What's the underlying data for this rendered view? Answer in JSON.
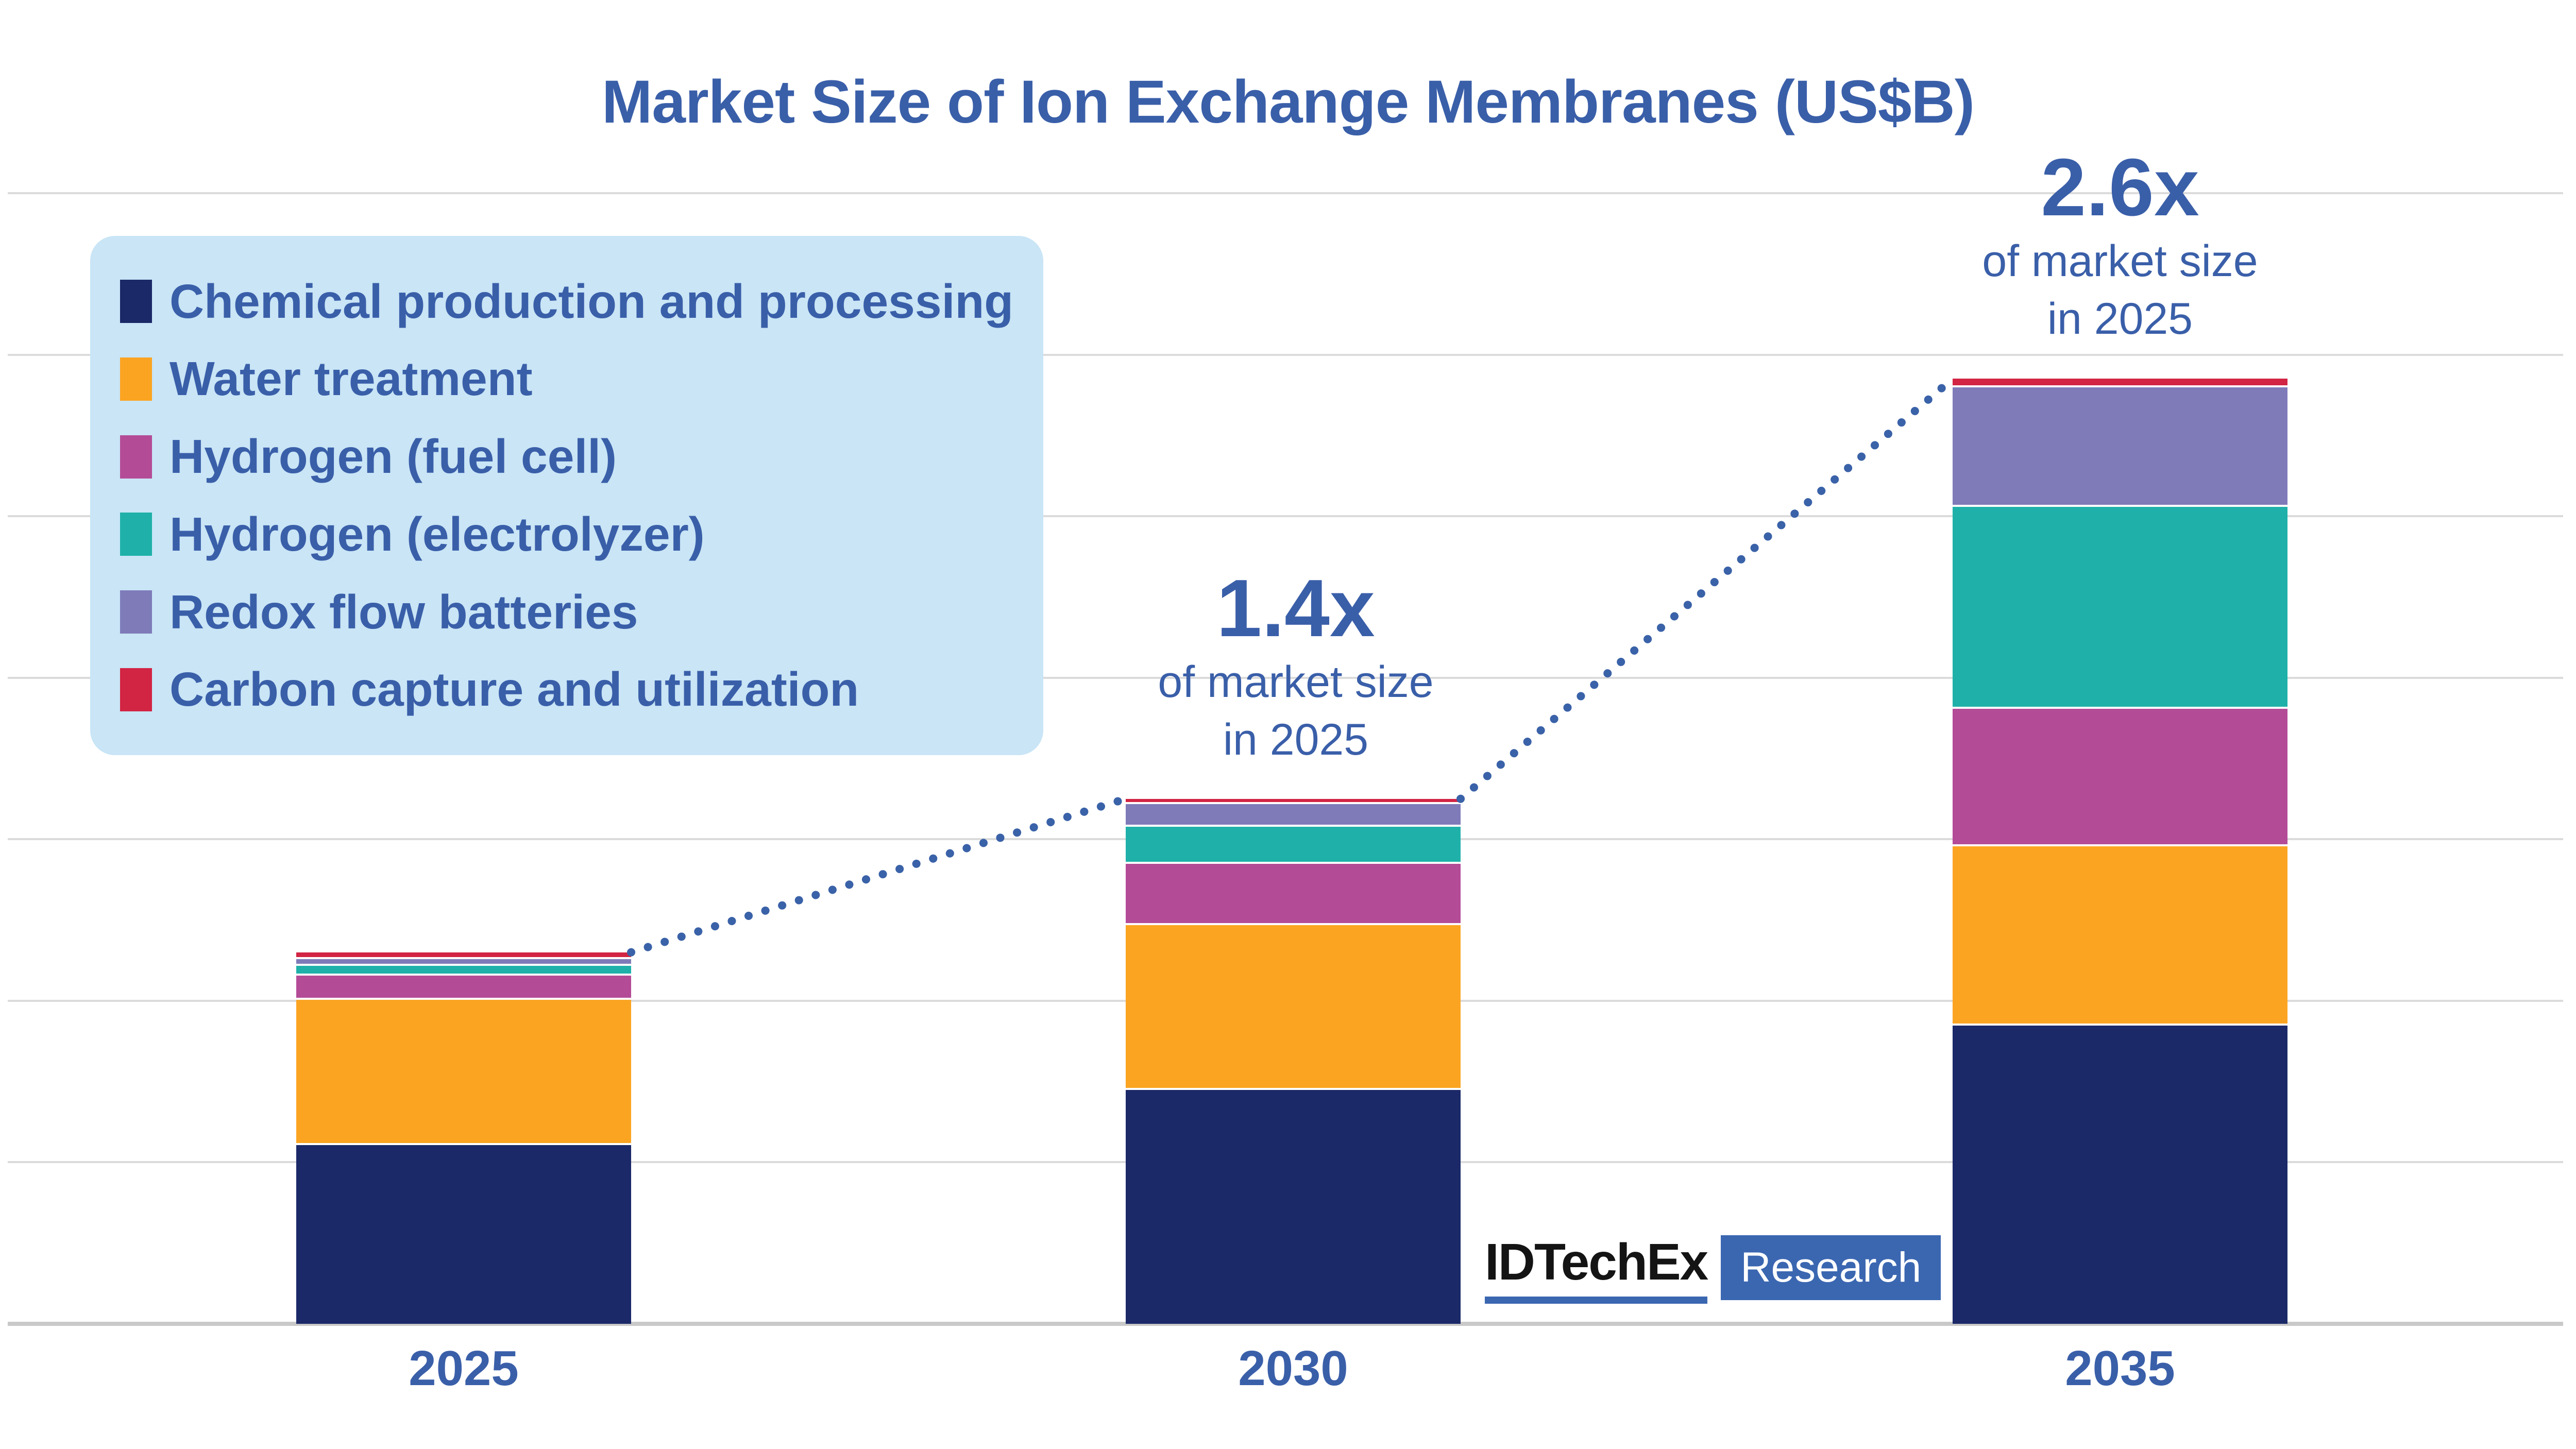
{
  "title": "Market Size of Ion Exchange Membranes (US$B)",
  "colors": {
    "background": "#FFFFFF",
    "title_text": "#3A5FA9",
    "legend_bg": "#C9E5F6",
    "gridline": "#DBDBDB",
    "baseline": "#C9C9C9",
    "connector": "#3A62A8",
    "logo_blue": "#3B67B1",
    "logo_text": "#141414"
  },
  "legend": {
    "items": [
      {
        "label": "Chemical production and processing",
        "color": "#1B2968"
      },
      {
        "label": "Water treatment",
        "color": "#FBA422"
      },
      {
        "label": "Hydrogen (fuel cell)",
        "color": "#B44B97"
      },
      {
        "label": "Hydrogen (electrolyzer)",
        "color": "#1FB1A9"
      },
      {
        "label": "Redox flow batteries",
        "color": "#7F7BB9"
      },
      {
        "label": "Carbon capture and utilization",
        "color": "#D22443"
      }
    ]
  },
  "annotations": {
    "y2030": {
      "multiplier": "1.4x",
      "line1": "of market size",
      "line2": "in 2025"
    },
    "y2035": {
      "multiplier": "2.6x",
      "line1": "of market size",
      "line2": "in 2025"
    }
  },
  "logo": {
    "brand": "IDTechEx",
    "suffix": "Research"
  },
  "chart_data": {
    "type": "bar",
    "stacked": true,
    "categories": [
      "2025",
      "2030",
      "2035"
    ],
    "value_units": "relative gridline units (y-axis has no tick labels; 1 unit = one horizontal gridline interval)",
    "series": [
      {
        "name": "Chemical production and processing",
        "color": "#1B2968",
        "values": [
          1.12,
          1.46,
          1.86
        ]
      },
      {
        "name": "Water treatment",
        "color": "#FBA422",
        "values": [
          0.9,
          1.02,
          1.11
        ]
      },
      {
        "name": "Hydrogen (fuel cell)",
        "color": "#B44B97",
        "values": [
          0.15,
          0.38,
          0.85
        ]
      },
      {
        "name": "Hydrogen (electrolyzer)",
        "color": "#1FB1A9",
        "values": [
          0.06,
          0.23,
          1.25
        ]
      },
      {
        "name": "Redox flow batteries",
        "color": "#7F7BB9",
        "values": [
          0.04,
          0.14,
          0.74
        ]
      },
      {
        "name": "Carbon capture and utilization",
        "color": "#D22443",
        "values": [
          0.03,
          0.02,
          0.04
        ]
      }
    ],
    "stack_order": "series listed bottom-to-top of each bar",
    "bar_totals_units": [
      2.3,
      3.25,
      5.85
    ],
    "totals_relative_to_2025": [
      1.0,
      1.4,
      2.6
    ],
    "point_annotations": [
      {
        "category": "2030",
        "text": "1.4x of market size in 2025"
      },
      {
        "category": "2035",
        "text": "2.6x of market size in 2025"
      }
    ],
    "connector_lines": "dotted lines join top of 2025 bar to top of 2030 bar, and top of 2030 bar to top of 2035 bar",
    "xlabel": "",
    "ylabel": "",
    "ylim_units": [
      0,
      7
    ],
    "grid": "horizontal gridlines on, 8 lines including baseline",
    "legend_position": "upper-left rounded light-blue panel"
  }
}
